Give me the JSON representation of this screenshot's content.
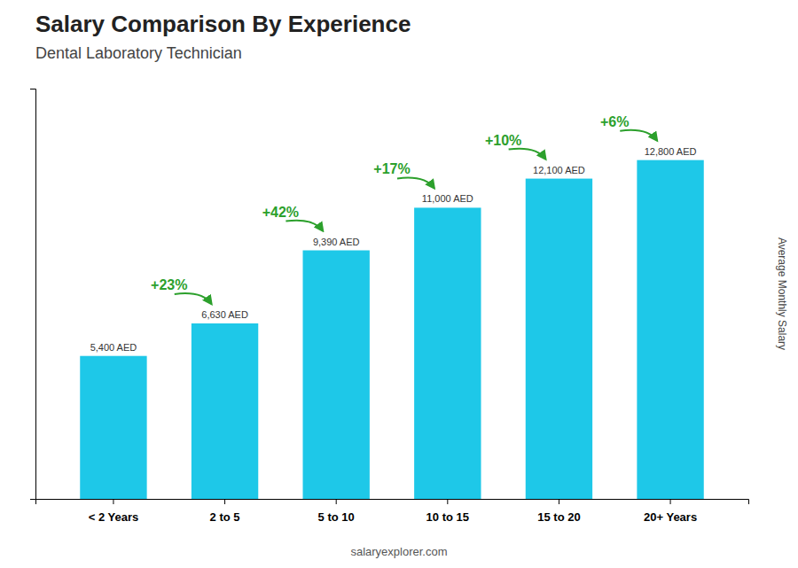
{
  "chart_data": {
    "type": "bar",
    "title": "Salary Comparison By Experience",
    "subtitle": "Dental Laboratory Technician",
    "ylabel": "Average Monthly Salary",
    "footer": "salaryexplorer.com",
    "categories": [
      "< 2 Years",
      "2 to 5",
      "5 to 10",
      "10 to 15",
      "15 to 20",
      "20+ Years"
    ],
    "values": [
      5400,
      6630,
      9390,
      11000,
      12100,
      12800
    ],
    "value_labels": [
      "5,400 AED",
      "6,630 AED",
      "9,390 AED",
      "11,000 AED",
      "12,100 AED",
      "12,800 AED"
    ],
    "data_labels": true,
    "annotations": [
      "+23%",
      "+42%",
      "+17%",
      "+10%",
      "+6%"
    ],
    "color": "#1ec8e8",
    "ylim": [
      0,
      15500
    ],
    "yticks": [],
    "tick_labels": "x",
    "grid": false
  }
}
